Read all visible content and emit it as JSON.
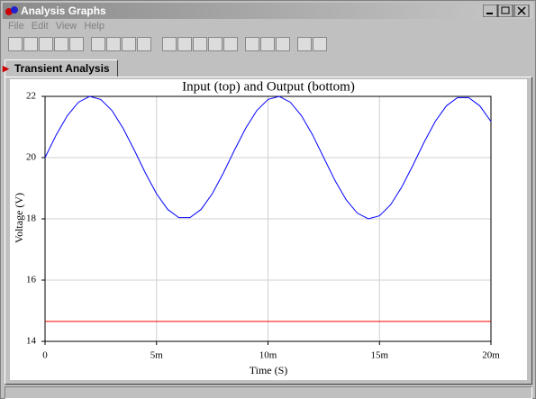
{
  "window": {
    "title": "Analysis Graphs",
    "menu": [
      "File",
      "Edit",
      "View",
      "Help"
    ],
    "tab": "Transient Analysis"
  },
  "chart_data": {
    "type": "line",
    "title": "Input (top) and Output (bottom)",
    "xlabel": "Time (S)",
    "ylabel": "Voltage (V)",
    "x": [
      0,
      0.0005,
      0.001,
      0.0015,
      0.002,
      0.0025,
      0.003,
      0.0035,
      0.004,
      0.0045,
      0.005,
      0.0055,
      0.006,
      0.0065,
      0.007,
      0.0075,
      0.008,
      0.0085,
      0.009,
      0.0095,
      0.01,
      0.0105,
      0.011,
      0.0115,
      0.012,
      0.0125,
      0.013,
      0.0135,
      0.014,
      0.0145,
      0.015,
      0.0155,
      0.016,
      0.0165,
      0.017,
      0.0175,
      0.018,
      0.0185,
      0.019,
      0.0195,
      0.02
    ],
    "series": [
      {
        "color": "#0000ff",
        "values": [
          20,
          20.74,
          21.37,
          21.81,
          22,
          21.9,
          21.54,
          20.96,
          20.25,
          19.5,
          18.82,
          18.31,
          18.04,
          18.04,
          18.31,
          18.82,
          19.5,
          20.25,
          20.96,
          21.54,
          21.9,
          22,
          21.81,
          21.37,
          20.74,
          20,
          19.26,
          18.63,
          18.19,
          18,
          18.1,
          18.46,
          19.04,
          19.75,
          20.5,
          21.18,
          21.69,
          21.96,
          21.96,
          21.69,
          21.18
        ]
      },
      {
        "color": "#ff0000",
        "values": [
          14.65,
          14.65,
          14.65,
          14.65,
          14.65,
          14.65,
          14.65,
          14.65,
          14.65,
          14.65,
          14.65,
          14.65,
          14.65,
          14.65,
          14.65,
          14.65,
          14.65,
          14.65,
          14.65,
          14.65,
          14.65,
          14.65,
          14.65,
          14.65,
          14.65,
          14.65,
          14.65,
          14.65,
          14.65,
          14.65,
          14.65,
          14.65,
          14.65,
          14.65,
          14.65,
          14.65,
          14.65,
          14.65,
          14.65,
          14.65,
          14.65
        ]
      }
    ],
    "xlim": [
      0,
      0.02
    ],
    "xticks": [
      0,
      {
        "value": 0.005,
        "label": "5m"
      },
      {
        "value": 0.01,
        "label": "10m"
      },
      {
        "value": 0.015,
        "label": "15m"
      },
      {
        "value": 0.02,
        "label": "20m"
      }
    ],
    "ylim": [
      14,
      22
    ],
    "yticks": [
      14,
      16,
      18,
      20,
      22
    ],
    "grid": true
  }
}
